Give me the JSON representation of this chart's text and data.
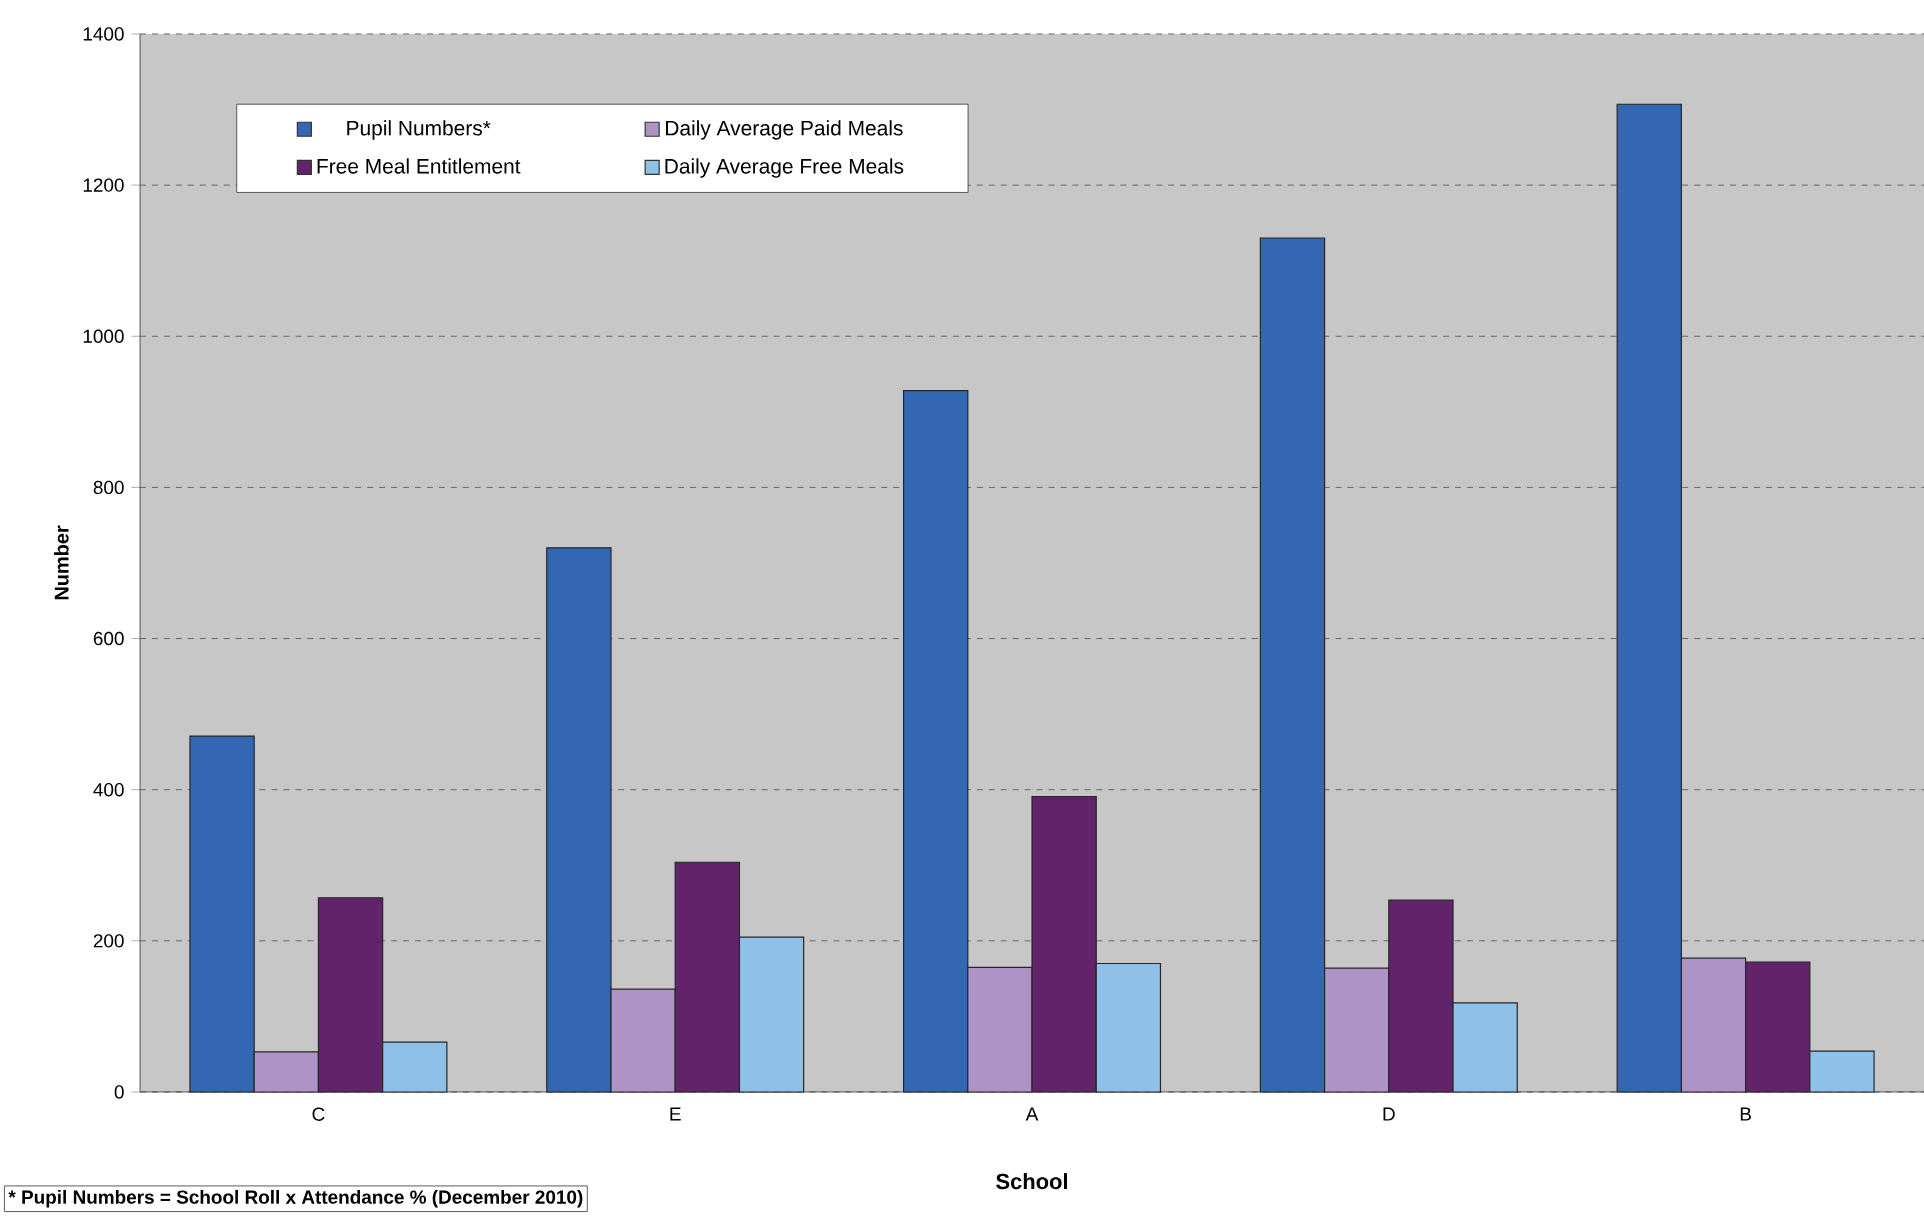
{
  "chart_data": {
    "type": "bar",
    "xlabel": "School",
    "ylabel": "Number",
    "categories": [
      "C",
      "E",
      "A",
      "D",
      "B"
    ],
    "series": [
      {
        "name": "Pupil Numbers*",
        "color": "#3467b3",
        "values": [
          471,
          720,
          928,
          1130,
          1307
        ]
      },
      {
        "name": "Daily Average Paid Meals",
        "color": "#ae93c6",
        "values": [
          53,
          136,
          165,
          164,
          177
        ]
      },
      {
        "name": "Free Meal Entitlement",
        "color": "#62236b",
        "values": [
          257,
          304,
          391,
          254,
          172
        ]
      },
      {
        "name": "Daily Average Free Meals",
        "color": "#8fc0e8",
        "values": [
          66,
          205,
          170,
          118,
          54
        ]
      }
    ],
    "ylim": [
      0,
      1400
    ],
    "yticks": [
      0,
      200,
      400,
      600,
      800,
      1000,
      1200,
      1400
    ],
    "grid": "y",
    "legend": "top left",
    "annotations": [
      "* Pupil Numbers = School Roll x Attendance % (December 2010)"
    ]
  }
}
